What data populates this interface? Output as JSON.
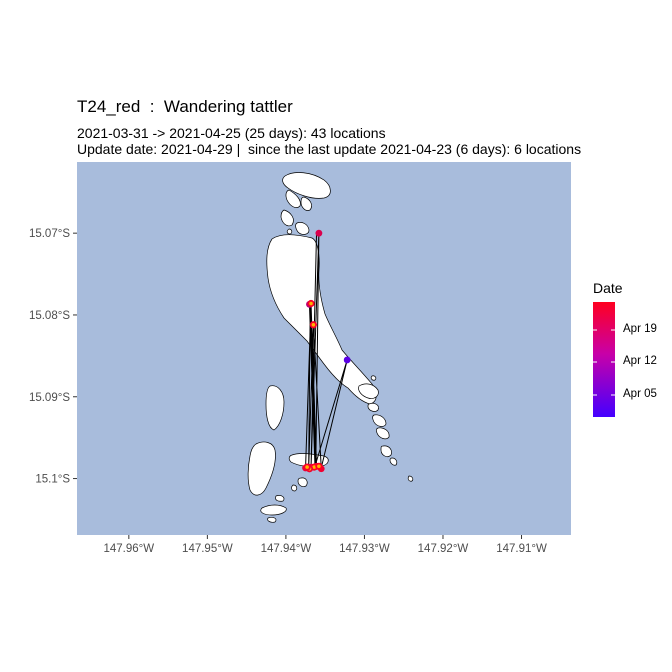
{
  "title": "T24_red  :  Wandering tattler",
  "subtitle_line1": "2021-03-31 -> 2021-04-25 (25 days): 43 locations",
  "subtitle_line2": "Update date: 2021-04-29 |  since the last update 2021-04-23 (6 days): 6 locations",
  "colors": {
    "ocean": "#a8bcdc",
    "land": "#ffffff",
    "land_outline": "#000000",
    "track": "#000000",
    "date_start": "#4400ff",
    "date_end": "#ff0020",
    "recent_fill": "#ffb300"
  },
  "map": {
    "x_ticks": [
      {
        "value": -147.96,
        "label": "147.96°W"
      },
      {
        "value": -147.95,
        "label": "147.95°W"
      },
      {
        "value": -147.94,
        "label": "147.94°W"
      },
      {
        "value": -147.93,
        "label": "147.93°W"
      },
      {
        "value": -147.92,
        "label": "147.92°W"
      },
      {
        "value": -147.91,
        "label": "147.91°W"
      }
    ],
    "y_ticks": [
      {
        "value": -15.07,
        "label": "15.07°S"
      },
      {
        "value": -15.08,
        "label": "15.08°S"
      },
      {
        "value": -15.09,
        "label": "15.09°S"
      },
      {
        "value": -15.1,
        "label": "15.10°S",
        "display": "15.1°S"
      }
    ],
    "xlim": [
      -147.9666,
      -147.9037
    ],
    "ylim": [
      -15.1069,
      -15.0613
    ]
  },
  "legend": {
    "title": "Date",
    "labels": [
      "Apr 19",
      "Apr 12",
      "Apr 05"
    ]
  },
  "chart_data": {
    "type": "scatter",
    "x_axis": "longitude",
    "y_axis": "latitude",
    "track": [
      {
        "lon": -147.9361,
        "lat": -15.07
      },
      {
        "lon": -147.9368,
        "lat": -15.0986
      },
      {
        "lon": -147.9358,
        "lat": -15.0699
      },
      {
        "lon": -147.9362,
        "lat": -15.0988
      },
      {
        "lon": -147.9369,
        "lat": -15.0787
      },
      {
        "lon": -147.9371,
        "lat": -15.0986
      },
      {
        "lon": -147.9365,
        "lat": -15.0812
      },
      {
        "lon": -147.9355,
        "lat": -15.0987
      },
      {
        "lon": -147.9322,
        "lat": -15.0855
      },
      {
        "lon": -147.9363,
        "lat": -15.0985
      },
      {
        "lon": -147.937,
        "lat": -15.0788
      },
      {
        "lon": -147.9361,
        "lat": -15.0985
      },
      {
        "lon": -147.9368,
        "lat": -15.0786
      },
      {
        "lon": -147.9375,
        "lat": -15.0987
      }
    ],
    "locations": [
      {
        "lon": -147.9322,
        "lat": -15.0855,
        "date": "Apr 03",
        "recent": false
      },
      {
        "lon": -147.937,
        "lat": -15.0787,
        "date": "Apr 15",
        "recent": false
      },
      {
        "lon": -147.9358,
        "lat": -15.07,
        "date": "Apr 20",
        "recent": false
      },
      {
        "lon": -147.9375,
        "lat": -15.0987,
        "date": "Apr 22",
        "recent": false
      },
      {
        "lon": -147.9368,
        "lat": -15.0986,
        "date": "Apr 21",
        "recent": false
      },
      {
        "lon": -147.9355,
        "lat": -15.0988,
        "date": "Apr 23",
        "recent": false
      },
      {
        "lon": -147.9361,
        "lat": -15.0985,
        "date": "Apr 22",
        "recent": false
      },
      {
        "lon": -147.9368,
        "lat": -15.0786,
        "date": "Apr 24",
        "recent": true
      },
      {
        "lon": -147.9365,
        "lat": -15.0812,
        "date": "Apr 24",
        "recent": true
      },
      {
        "lon": -147.9364,
        "lat": -15.0986,
        "date": "Apr 25",
        "recent": true
      },
      {
        "lon": -147.937,
        "lat": -15.0988,
        "date": "Apr 23",
        "recent": true
      },
      {
        "lon": -147.9358,
        "lat": -15.0985,
        "date": "Apr 25",
        "recent": true
      },
      {
        "lon": -147.9373,
        "lat": -15.0986,
        "date": "Apr 24",
        "recent": true
      }
    ]
  }
}
